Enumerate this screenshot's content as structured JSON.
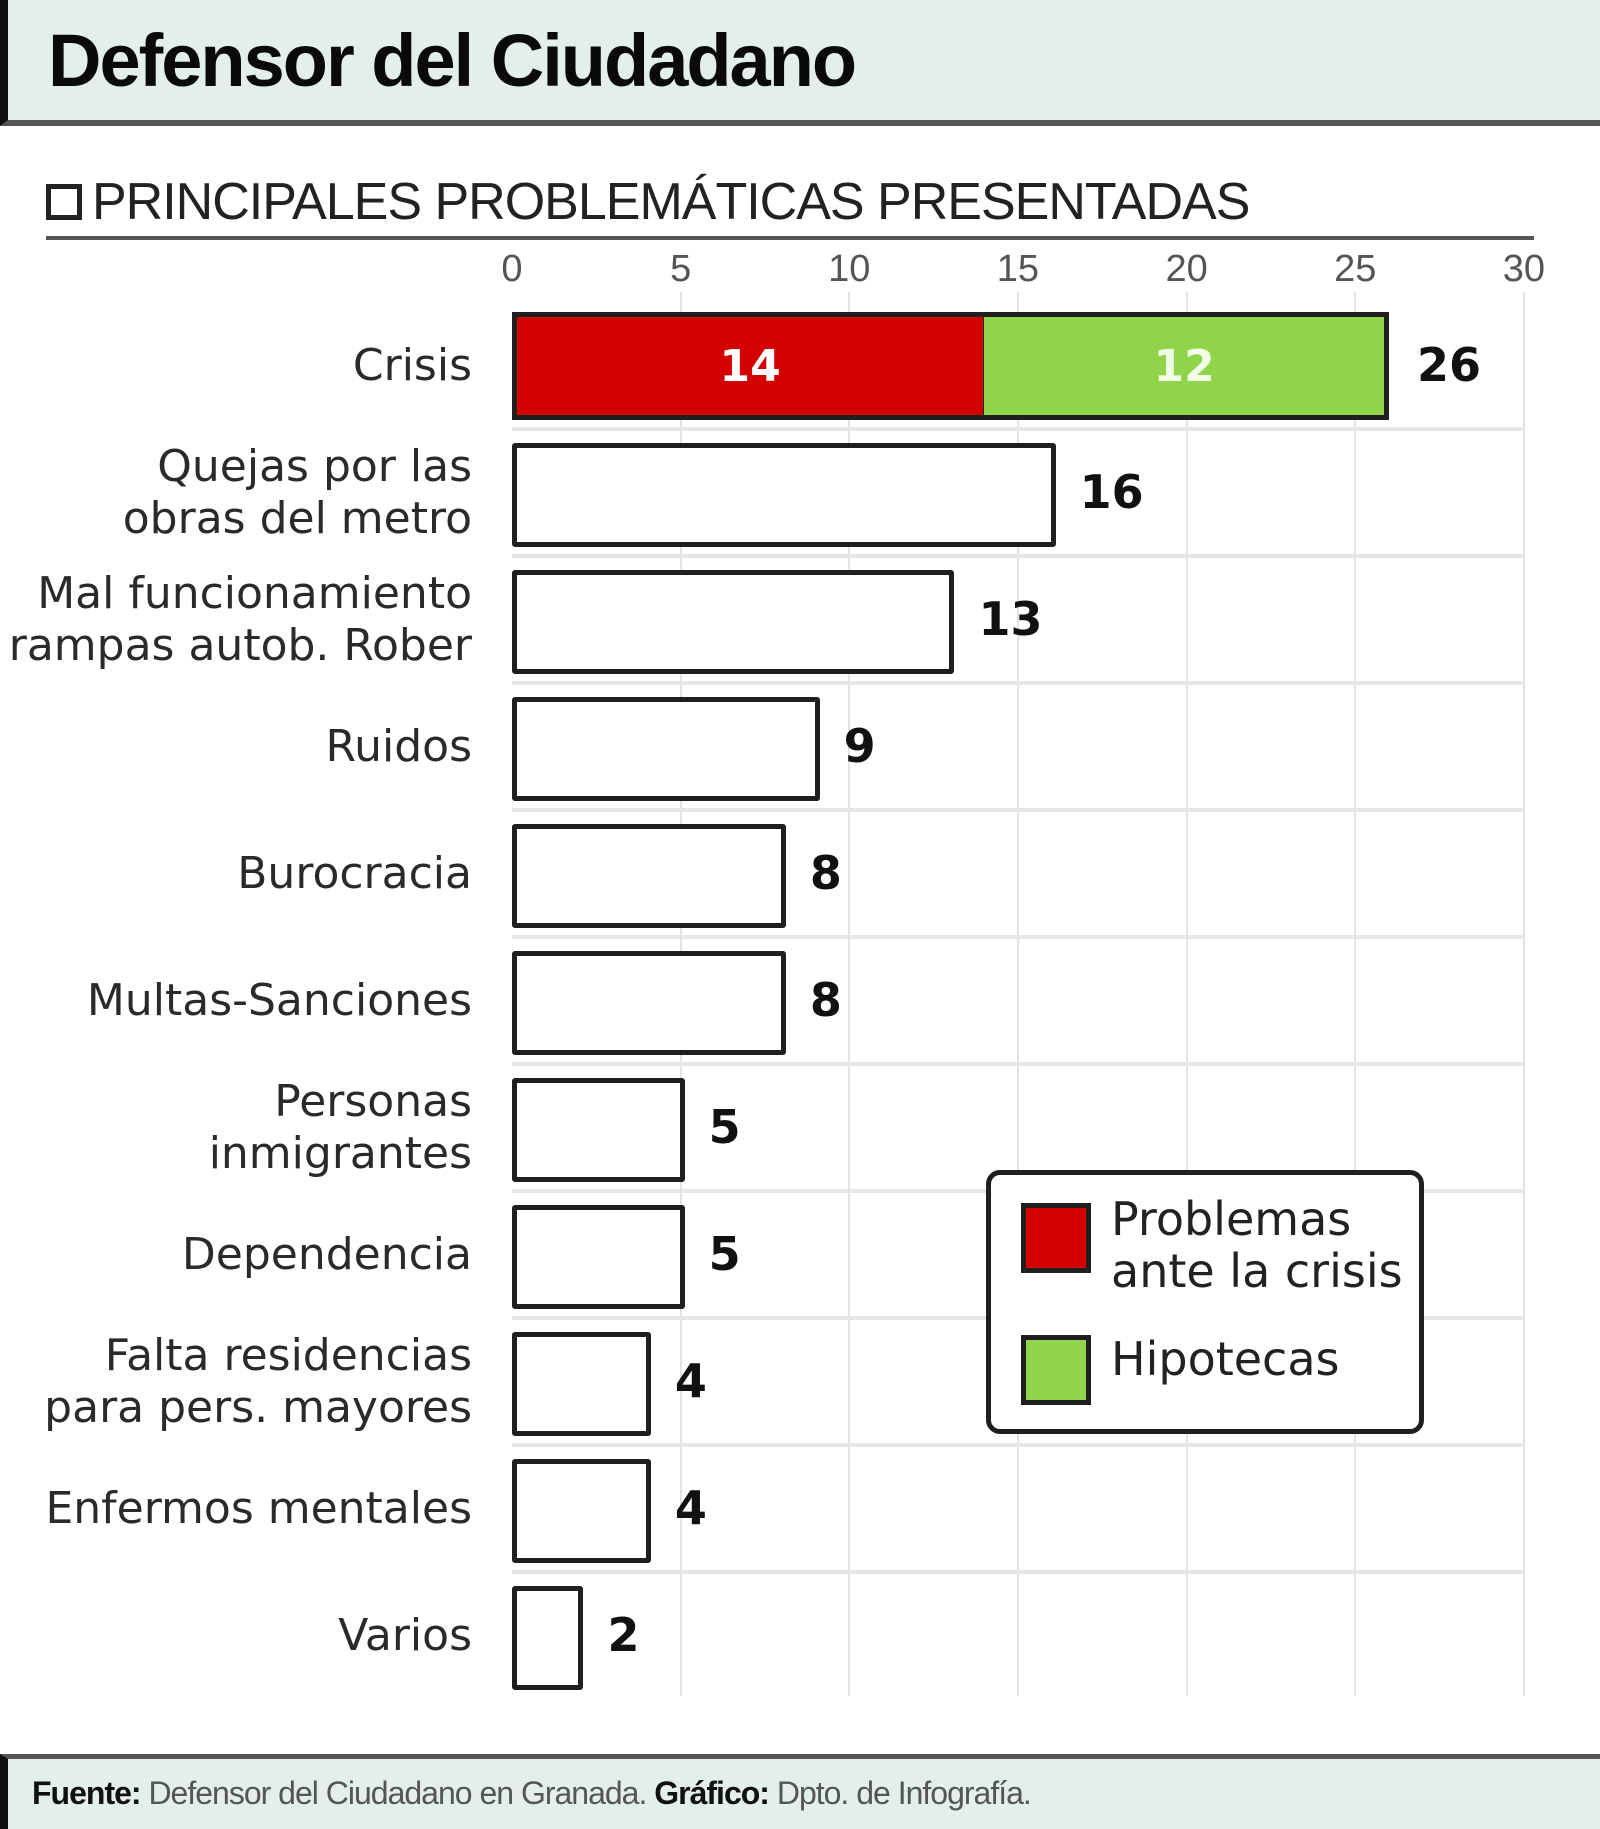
{
  "header": {
    "title": "Defensor del Ciudadano"
  },
  "subtitle": "PRINCIPALES PROBLEMÁTICAS PRESENTADAS",
  "axis": {
    "ticks": [
      "0",
      "5",
      "10",
      "15",
      "20",
      "25",
      "30"
    ]
  },
  "colors": {
    "red": "#d40000",
    "green": "#8fd44a",
    "border": "#1f1f1f",
    "header_bg": "#e3efe9"
  },
  "rows": [
    {
      "label": "Crisis",
      "value": "26",
      "seg1": "14",
      "seg2": "12"
    },
    {
      "label": "Quejas por las\nobras del metro",
      "value": "16"
    },
    {
      "label": "Mal funcionamiento\nrampas autob. Rober",
      "value": "13"
    },
    {
      "label": "Ruidos",
      "value": "9"
    },
    {
      "label": "Burocracia",
      "value": "8"
    },
    {
      "label": "Multas-Sanciones",
      "value": "8"
    },
    {
      "label": "Personas\ninmigrantes",
      "value": "5"
    },
    {
      "label": "Dependencia",
      "value": "5"
    },
    {
      "label": "Falta residencias\npara pers. mayores",
      "value": "4"
    },
    {
      "label": "Enfermos mentales",
      "value": "4"
    },
    {
      "label": "Varios",
      "value": "2"
    }
  ],
  "legend": {
    "items": [
      {
        "label": "Problemas\nante la crisis",
        "color": "#d40000"
      },
      {
        "label": "Hipotecas",
        "color": "#8fd44a"
      }
    ]
  },
  "footer": {
    "source_label": "Fuente:",
    "source_text": " Defensor del Ciudadano en Granada. ",
    "graphic_label": "Gráfico:",
    "graphic_text": " Dpto. de Infografía."
  },
  "chart_data": {
    "type": "bar",
    "orientation": "horizontal",
    "title": "Defensor del Ciudadano",
    "subtitle": "PRINCIPALES PROBLEMÁTICAS PRESENTADAS",
    "categories": [
      "Crisis",
      "Quejas por las obras del metro",
      "Mal funcionamiento rampas autob. Rober",
      "Ruidos",
      "Burocracia",
      "Multas-Sanciones",
      "Personas inmigrantes",
      "Dependencia",
      "Falta residencias para pers. mayores",
      "Enfermos mentales",
      "Varios"
    ],
    "values": [
      26,
      16,
      13,
      9,
      8,
      8,
      5,
      5,
      4,
      4,
      2
    ],
    "stacked_breakdown": {
      "category": "Crisis",
      "series": [
        {
          "name": "Problemas ante la crisis",
          "value": 14,
          "color": "#d40000"
        },
        {
          "name": "Hipotecas",
          "value": 12,
          "color": "#8fd44a"
        }
      ]
    },
    "xlabel": "",
    "ylabel": "",
    "xlim": [
      0,
      30
    ],
    "xticks": [
      0,
      5,
      10,
      15,
      20,
      25,
      30
    ],
    "grid": true,
    "legend_position": "inside-right",
    "source": "Defensor del Ciudadano en Granada",
    "graphic": "Dpto. de Infografía"
  }
}
